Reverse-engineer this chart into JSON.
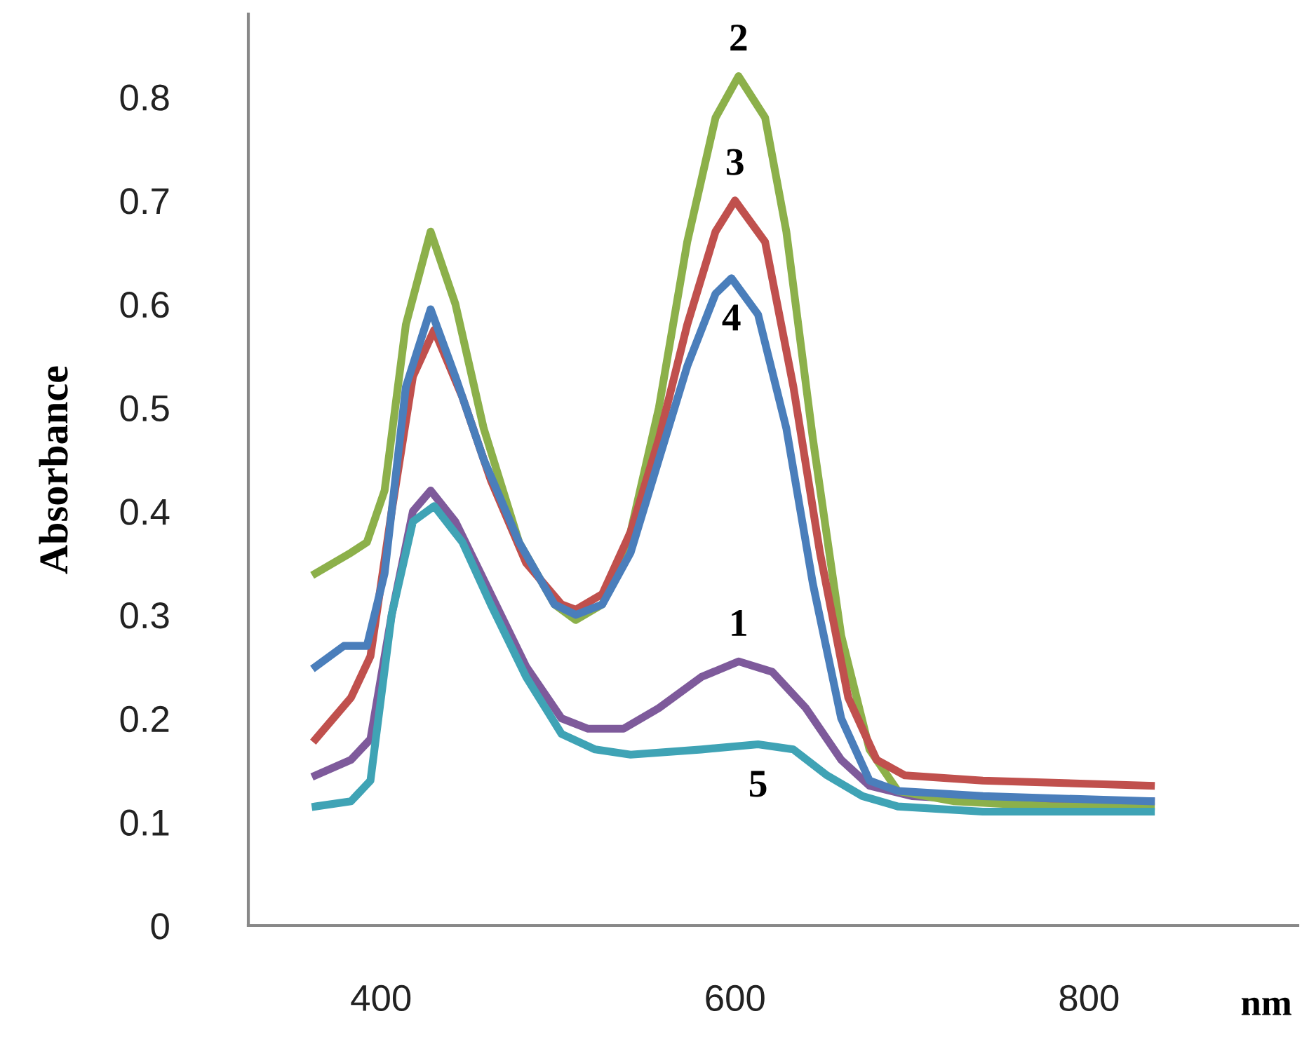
{
  "chart_data": {
    "type": "line",
    "xlabel": "nm",
    "ylabel": "Absorbance",
    "xlim": [
      325,
      918
    ],
    "ylim": [
      0,
      0.88
    ],
    "xticks": [
      400,
      600,
      800
    ],
    "yticks": [
      0,
      0.1,
      0.2,
      0.3,
      0.4,
      0.5,
      0.6,
      0.7,
      0.8
    ],
    "grid": false,
    "marker": "none",
    "line_style": "solid",
    "series": [
      {
        "name": "1",
        "color": "#7e5a9b",
        "x": [
          363,
          383,
          394,
          406,
          418,
          428,
          442,
          462,
          482,
          502,
          517,
          537,
          557,
          581,
          602,
          621,
          640,
          660,
          676,
          700,
          756,
          835
        ],
        "values": [
          0.145,
          0.16,
          0.18,
          0.3,
          0.4,
          0.42,
          0.39,
          0.32,
          0.25,
          0.2,
          0.19,
          0.19,
          0.21,
          0.24,
          0.255,
          0.245,
          0.21,
          0.16,
          0.135,
          0.125,
          0.12,
          0.12
        ]
      },
      {
        "name": "2",
        "color": "#8cb04a",
        "x": [
          363,
          383,
          392,
          402,
          414,
          428,
          442,
          458,
          478,
          498,
          510,
          525,
          541,
          557,
          573,
          589,
          602,
          617,
          629,
          644,
          660,
          676,
          692,
          724,
          779,
          835
        ],
        "values": [
          0.34,
          0.36,
          0.37,
          0.42,
          0.58,
          0.67,
          0.6,
          0.48,
          0.37,
          0.31,
          0.295,
          0.31,
          0.38,
          0.5,
          0.66,
          0.78,
          0.82,
          0.78,
          0.67,
          0.47,
          0.28,
          0.17,
          0.13,
          0.12,
          0.115,
          0.115
        ]
      },
      {
        "name": "3",
        "color": "#c0504d",
        "x": [
          363,
          383,
          394,
          406,
          418,
          430,
          446,
          462,
          482,
          502,
          510,
          525,
          541,
          557,
          573,
          589,
          600,
          617,
          633,
          648,
          664,
          680,
          696,
          740,
          835
        ],
        "values": [
          0.18,
          0.22,
          0.26,
          0.4,
          0.53,
          0.575,
          0.51,
          0.43,
          0.35,
          0.31,
          0.305,
          0.32,
          0.38,
          0.47,
          0.58,
          0.67,
          0.7,
          0.66,
          0.52,
          0.36,
          0.22,
          0.16,
          0.145,
          0.14,
          0.135
        ]
      },
      {
        "name": "4",
        "color": "#4a7ebb",
        "x": [
          363,
          379,
          392,
          402,
          414,
          428,
          442,
          458,
          478,
          498,
          510,
          525,
          541,
          557,
          573,
          589,
          598,
          613,
          629,
          644,
          660,
          676,
          692,
          740,
          835
        ],
        "values": [
          0.25,
          0.27,
          0.27,
          0.34,
          0.52,
          0.595,
          0.53,
          0.45,
          0.37,
          0.31,
          0.3,
          0.31,
          0.36,
          0.45,
          0.54,
          0.61,
          0.625,
          0.59,
          0.48,
          0.33,
          0.2,
          0.14,
          0.13,
          0.125,
          0.12
        ]
      },
      {
        "name": "5",
        "color": "#3fa3b5",
        "x": [
          363,
          383,
          394,
          406,
          418,
          430,
          446,
          462,
          482,
          502,
          521,
          541,
          581,
          613,
          633,
          652,
          672,
          692,
          740,
          835
        ],
        "values": [
          0.115,
          0.12,
          0.14,
          0.3,
          0.39,
          0.405,
          0.37,
          0.31,
          0.24,
          0.185,
          0.17,
          0.165,
          0.17,
          0.175,
          0.17,
          0.145,
          0.125,
          0.115,
          0.11,
          0.11
        ]
      }
    ]
  }
}
